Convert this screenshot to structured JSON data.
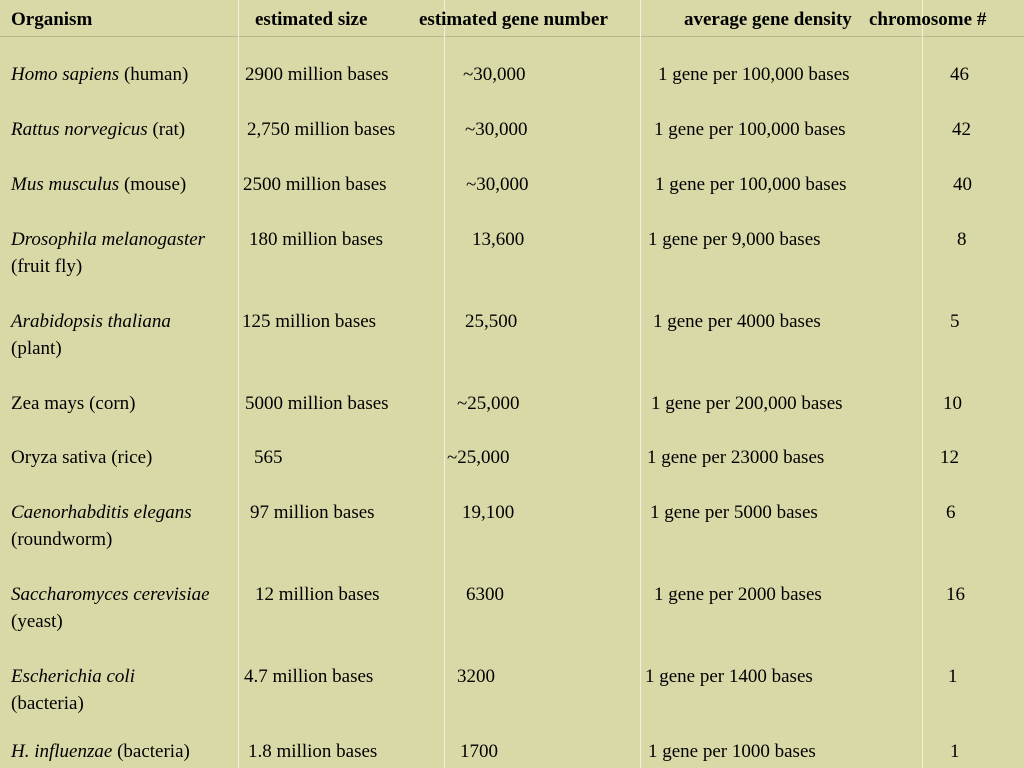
{
  "headers": {
    "organism": "Organism",
    "size": "estimated size",
    "gene_number": "estimated gene number",
    "density": "average gene density",
    "chromosome": "chromosome #"
  },
  "rows": [
    {
      "sci": "Homo sapiens",
      "common": " (human)",
      "size": "2900 million bases",
      "genes": "~30,000",
      "density": "1 gene per 100,000 bases",
      "chrom": "46"
    },
    {
      "sci": "Rattus norvegicus",
      "common": " (rat)",
      "size": "2,750 million bases",
      "genes": "~30,000",
      "density": "1 gene per 100,000 bases",
      "chrom": "42"
    },
    {
      "sci": "Mus musculus",
      "common": " (mouse)",
      "size": "2500 million bases",
      "genes": "~30,000",
      "density": "1 gene per 100,000 bases",
      "chrom": "40"
    },
    {
      "sci": "Drosophila melanogaster",
      "common": "(fruit fly)",
      "size": "180 million bases",
      "genes": "13,600",
      "density": "1 gene per 9,000 bases",
      "chrom": "8"
    },
    {
      "sci": "Arabidopsis thaliana",
      "common": "(plant)",
      "size": "125 million bases",
      "genes": "25,500",
      "density": "1 gene per 4000 bases",
      "chrom": "5"
    },
    {
      "sci": "",
      "common": "Zea mays  (corn)",
      "size": "5000 million bases",
      "genes": "~25,000",
      "density": "1 gene per 200,000 bases",
      "chrom": "10"
    },
    {
      "sci": "",
      "common": "Oryza sativa (rice)",
      "size": "565",
      "genes": "~25,000",
      "density": "1 gene per 23000 bases",
      "chrom": "12"
    },
    {
      "sci": "Caenorhabditis elegans",
      "common": "(roundworm)",
      "size": "97 million bases",
      "genes": "19,100",
      "density": "1 gene per 5000 bases",
      "chrom": "6"
    },
    {
      "sci": "Saccharomyces cerevisiae",
      "common": "(yeast)",
      "size": "12 million bases",
      "genes": "6300",
      "density": "1 gene per 2000 bases",
      "chrom": "16"
    },
    {
      "sci": "Escherichia coli",
      "common": "(bacteria)",
      "size": "4.7 million bases",
      "genes": "3200",
      "density": "1 gene per 1400 bases",
      "chrom": "1"
    },
    {
      "sci": "H. influenzae",
      "common": " (bacteria)",
      "size": "1.8 million bases",
      "genes": "1700",
      "density": "1 gene per 1000 bases",
      "chrom": "1"
    }
  ]
}
